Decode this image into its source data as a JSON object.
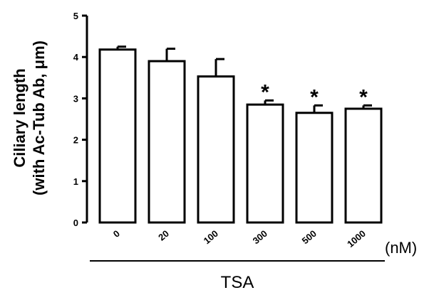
{
  "chart_data": {
    "type": "bar",
    "categories": [
      "0",
      "20",
      "100",
      "300",
      "500",
      "1000"
    ],
    "values": [
      4.18,
      3.9,
      3.53,
      2.85,
      2.65,
      2.75
    ],
    "errors": [
      0.07,
      0.3,
      0.42,
      0.1,
      0.18,
      0.08
    ],
    "significance": [
      "",
      "",
      "",
      "*",
      "*",
      "*"
    ],
    "ylabel_line1": "Ciliary length",
    "ylabel_line2": "(with Ac-Tub Ab, μm)",
    "x_unit": "(nM)",
    "x_group_label": "TSA",
    "ylim": [
      0,
      5
    ],
    "yticks": [
      "0",
      "1",
      "2",
      "3",
      "4",
      "5"
    ],
    "grid": false
  }
}
